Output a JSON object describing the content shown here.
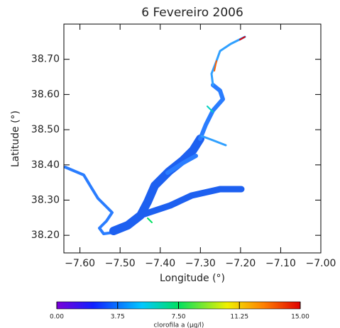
{
  "chart_data": {
    "type": "map",
    "title": "6 Fevereiro 2006",
    "x_label": "Longitude (°)",
    "y_label": "Latitude (°)",
    "xlim": [
      -7.64,
      -7.0
    ],
    "ylim": [
      38.15,
      38.8
    ],
    "xticks": [
      {
        "value": -7.6,
        "label": "−7.60"
      },
      {
        "value": -7.5,
        "label": "−7.50"
      },
      {
        "value": -7.4,
        "label": "−7.40"
      },
      {
        "value": -7.3,
        "label": "−7.30"
      },
      {
        "value": -7.2,
        "label": "−7.20"
      },
      {
        "value": -7.1,
        "label": "−7.10"
      },
      {
        "value": -7.0,
        "label": "−7.00"
      }
    ],
    "yticks": [
      {
        "value": 38.2,
        "label": "38.20"
      },
      {
        "value": 38.3,
        "label": "38.30"
      },
      {
        "value": 38.4,
        "label": "38.40"
      },
      {
        "value": 38.5,
        "label": "38.50"
      },
      {
        "value": 38.6,
        "label": "38.60"
      },
      {
        "value": 38.7,
        "label": "38.70"
      }
    ],
    "colorbar": {
      "label": "clorofila a (µg/l)",
      "lim": [
        0,
        15
      ],
      "ticks": [
        {
          "value": 0,
          "label": "0.00"
        },
        {
          "value": 3.75,
          "label": "3.75"
        },
        {
          "value": 7.5,
          "label": "7.50"
        },
        {
          "value": 11.25,
          "label": "11.25"
        },
        {
          "value": 15,
          "label": "15.00"
        }
      ]
    }
  }
}
